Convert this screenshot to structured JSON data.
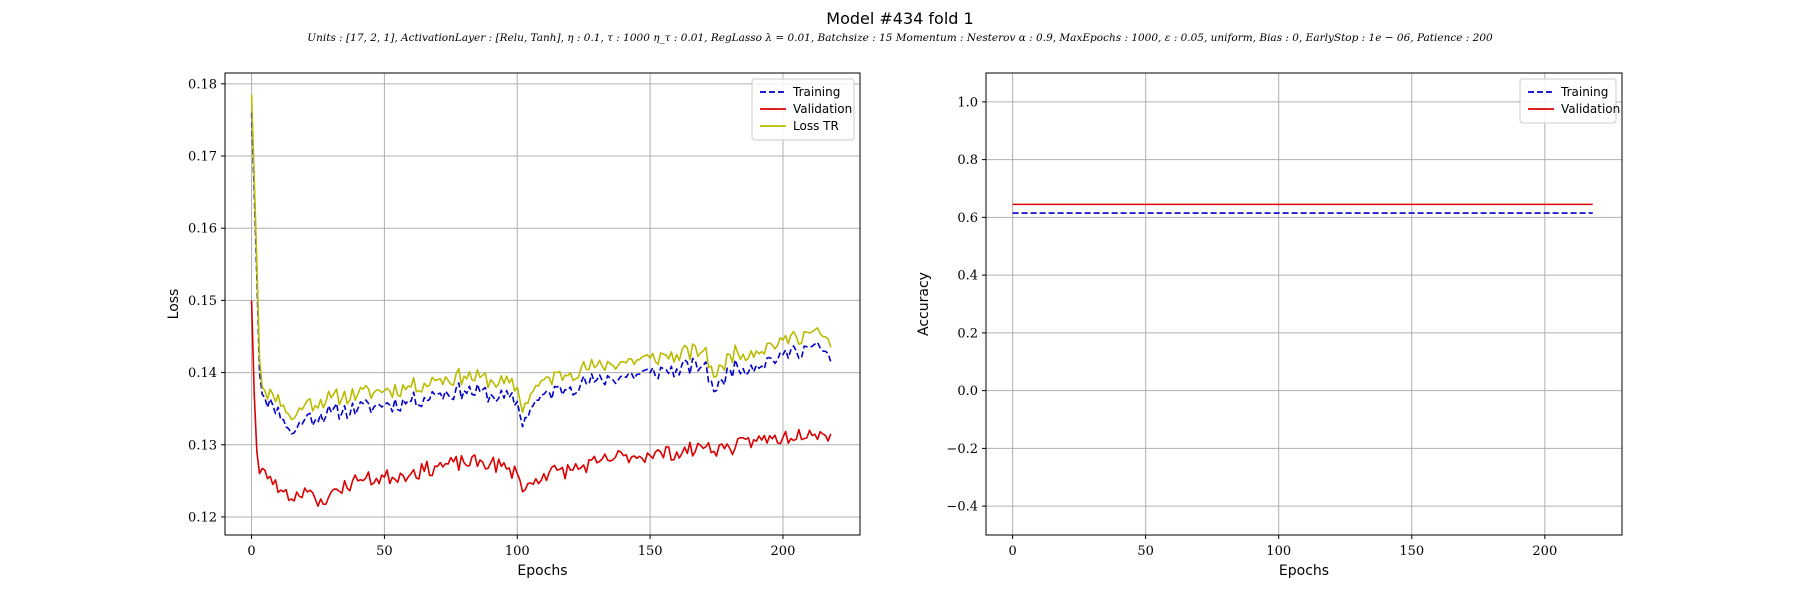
{
  "figure": {
    "title": "Model #434 fold 1",
    "subtitle": "Units : [17, 2, 1], ActivationLayer : [Relu, Tanh], η : 0.1, τ : 1000 η_τ : 0.01, RegLasso λ = 0.01, Batchsize : 15 Momentum : Nesterov α : 0.9, MaxEpochs : 1000, ε : 0.05, uniform, Bias : 0, EarlyStop : 1e − 06, Patience : 200"
  },
  "chart_data": [
    {
      "type": "line",
      "xlabel": "Epochs",
      "ylabel": "Loss",
      "xlim": [
        -10,
        229
      ],
      "ylim": [
        0.1175,
        0.1815
      ],
      "xticks": [
        0,
        50,
        100,
        150,
        200
      ],
      "yticks": [
        0.12,
        0.13,
        0.14,
        0.15,
        0.16,
        0.17,
        0.18
      ],
      "ytick_labels": [
        "0.12",
        "0.13",
        "0.14",
        "0.15",
        "0.16",
        "0.17",
        "0.18"
      ],
      "grid": true,
      "legend_position": "top-right",
      "x_end": 218,
      "series": [
        {
          "name": "Training",
          "color": "#0000cc",
          "dash": "dashed",
          "anchors": [
            [
              0,
              0.176
            ],
            [
              1,
              0.165
            ],
            [
              2,
              0.153
            ],
            [
              3,
              0.14
            ],
            [
              4,
              0.137
            ],
            [
              5,
              0.1365
            ],
            [
              8,
              0.1355
            ],
            [
              12,
              0.1335
            ],
            [
              15,
              0.1315
            ],
            [
              20,
              0.1335
            ],
            [
              30,
              0.1345
            ],
            [
              40,
              0.135
            ],
            [
              50,
              0.1355
            ],
            [
              60,
              0.136
            ],
            [
              70,
              0.137
            ],
            [
              80,
              0.1375
            ],
            [
              90,
              0.137
            ],
            [
              100,
              0.136
            ],
            [
              102,
              0.1325
            ],
            [
              105,
              0.135
            ],
            [
              110,
              0.137
            ],
            [
              120,
              0.138
            ],
            [
              130,
              0.139
            ],
            [
              140,
              0.1395
            ],
            [
              150,
              0.14
            ],
            [
              160,
              0.1405
            ],
            [
              170,
              0.141
            ],
            [
              175,
              0.1375
            ],
            [
              180,
              0.1405
            ],
            [
              190,
              0.141
            ],
            [
              200,
              0.1425
            ],
            [
              205,
              0.143
            ],
            [
              210,
              0.1435
            ],
            [
              215,
              0.143
            ],
            [
              218,
              0.1415
            ]
          ],
          "noise": 0.0012,
          "seed": 11
        },
        {
          "name": "Validation",
          "color": "#dd0000",
          "dash": "solid",
          "anchors": [
            [
              0,
              0.15
            ],
            [
              1,
              0.137
            ],
            [
              2,
              0.129
            ],
            [
              3,
              0.126
            ],
            [
              5,
              0.1265
            ],
            [
              8,
              0.1245
            ],
            [
              12,
              0.1235
            ],
            [
              15,
              0.1225
            ],
            [
              20,
              0.124
            ],
            [
              25,
              0.1215
            ],
            [
              30,
              0.1235
            ],
            [
              40,
              0.125
            ],
            [
              50,
              0.1255
            ],
            [
              60,
              0.126
            ],
            [
              70,
              0.127
            ],
            [
              80,
              0.1275
            ],
            [
              90,
              0.1275
            ],
            [
              100,
              0.126
            ],
            [
              102,
              0.1235
            ],
            [
              110,
              0.126
            ],
            [
              120,
              0.1265
            ],
            [
              130,
              0.1275
            ],
            [
              140,
              0.1285
            ],
            [
              150,
              0.1285
            ],
            [
              160,
              0.129
            ],
            [
              170,
              0.1295
            ],
            [
              180,
              0.1295
            ],
            [
              190,
              0.1305
            ],
            [
              200,
              0.131
            ],
            [
              210,
              0.132
            ],
            [
              215,
              0.1315
            ],
            [
              218,
              0.1315
            ]
          ],
          "noise": 0.0011,
          "seed": 23
        },
        {
          "name": "Loss TR",
          "color": "#bbbb00",
          "dash": "solid",
          "anchors": [
            [
              0,
              0.1785
            ],
            [
              1,
              0.167
            ],
            [
              2,
              0.155
            ],
            [
              3,
              0.142
            ],
            [
              4,
              0.138
            ],
            [
              5,
              0.1375
            ],
            [
              8,
              0.137
            ],
            [
              12,
              0.1355
            ],
            [
              15,
              0.1335
            ],
            [
              20,
              0.1355
            ],
            [
              30,
              0.1365
            ],
            [
              40,
              0.137
            ],
            [
              50,
              0.1375
            ],
            [
              60,
              0.138
            ],
            [
              70,
              0.139
            ],
            [
              80,
              0.1395
            ],
            [
              90,
              0.139
            ],
            [
              100,
              0.138
            ],
            [
              102,
              0.1345
            ],
            [
              105,
              0.137
            ],
            [
              110,
              0.139
            ],
            [
              120,
              0.14
            ],
            [
              130,
              0.141
            ],
            [
              140,
              0.1415
            ],
            [
              150,
              0.142
            ],
            [
              160,
              0.1425
            ],
            [
              170,
              0.143
            ],
            [
              175,
              0.1395
            ],
            [
              180,
              0.1425
            ],
            [
              190,
              0.143
            ],
            [
              200,
              0.1445
            ],
            [
              205,
              0.145
            ],
            [
              210,
              0.1455
            ],
            [
              215,
              0.145
            ],
            [
              218,
              0.1435
            ]
          ],
          "noise": 0.0012,
          "seed": 11
        }
      ]
    },
    {
      "type": "line",
      "xlabel": "Epochs",
      "ylabel": "Accuracy",
      "xlim": [
        -10,
        229
      ],
      "ylim": [
        -0.5,
        1.1
      ],
      "xticks": [
        0,
        50,
        100,
        150,
        200
      ],
      "yticks": [
        -0.4,
        -0.2,
        0.0,
        0.2,
        0.4,
        0.6,
        0.8,
        1.0
      ],
      "ytick_labels": [
        "−0.4",
        "−0.2",
        "0.0",
        "0.2",
        "0.4",
        "0.6",
        "0.8",
        "1.0"
      ],
      "grid": true,
      "legend_position": "top-right",
      "x_end": 218,
      "series": [
        {
          "name": "Training",
          "color": "#0000cc",
          "dash": "dashed",
          "anchors": [
            [
              0,
              0.615
            ],
            [
              218,
              0.615
            ]
          ],
          "noise": 0,
          "seed": 1
        },
        {
          "name": "Validation",
          "color": "#dd0000",
          "dash": "solid",
          "anchors": [
            [
              0,
              0.645
            ],
            [
              218,
              0.645
            ]
          ],
          "noise": 0,
          "seed": 1
        }
      ]
    }
  ]
}
